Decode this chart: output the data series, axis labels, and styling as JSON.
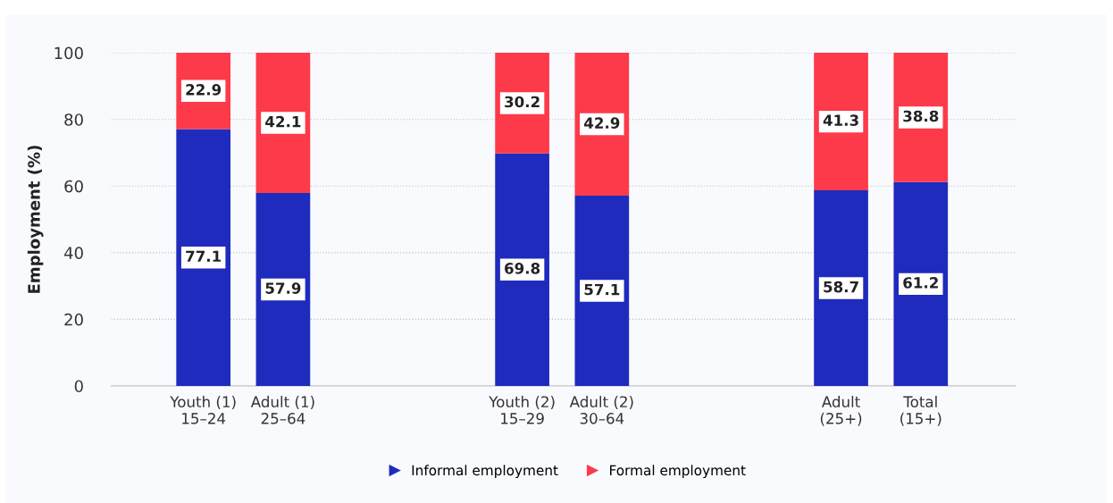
{
  "chart_data": {
    "type": "bar",
    "stacked": true,
    "ylabel": "Employment (%)",
    "categories": [
      "Youth (1)\n15–24",
      "Adult (1)\n25–64",
      null,
      null,
      "Youth (2)\n15–29",
      "Adult (2)\n30–64",
      null,
      null,
      "Adult\n(25+)",
      "Total\n(15+)"
    ],
    "series": [
      {
        "name": "Informal employment",
        "color": "#1f2bbd",
        "values": [
          77.1,
          57.9,
          null,
          null,
          69.8,
          57.1,
          null,
          null,
          58.7,
          61.2
        ]
      },
      {
        "name": "Formal employment",
        "color": "#fd3a4a",
        "values": [
          22.9,
          42.1,
          null,
          null,
          30.2,
          42.9,
          null,
          null,
          41.3,
          38.8
        ]
      }
    ],
    "ylim": [
      0,
      100
    ],
    "yticks": [
      0,
      20,
      40,
      60,
      80,
      100
    ],
    "grid": "y",
    "legend": "bottom",
    "data_labels": true
  }
}
